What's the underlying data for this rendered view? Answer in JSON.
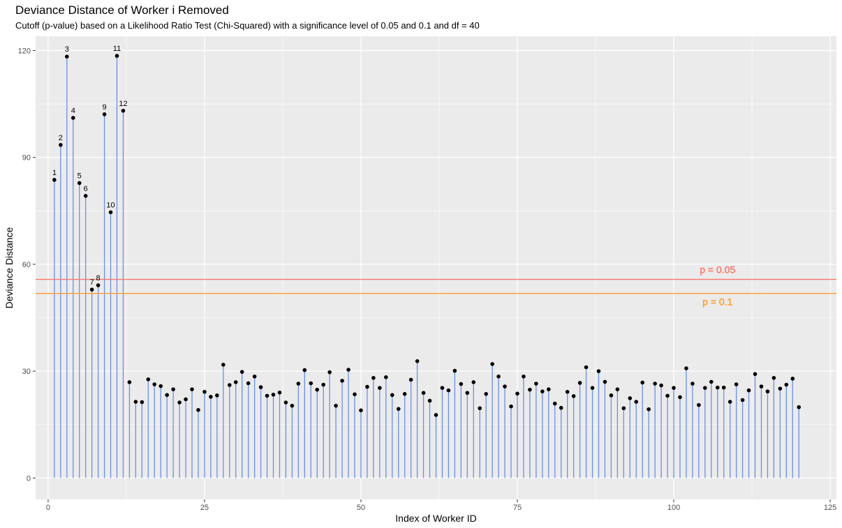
{
  "chart_data": {
    "type": "scatter",
    "style": "lollipop",
    "title": "Deviance Distance of Worker i Removed",
    "subtitle": "Cutoff (p-value) based on a Likelihood Ratio Test (Chi-Squared) with a significance level of 0.05 and 0.1 and df = 40",
    "xlabel": "Index of Worker ID",
    "ylabel": "Deviance Distance",
    "xlim": [
      -2,
      126
    ],
    "ylim": [
      -6,
      124
    ],
    "x_ticks": [
      0,
      25,
      50,
      75,
      100,
      125
    ],
    "y_ticks": [
      0,
      30,
      60,
      90,
      120
    ],
    "grid": true,
    "colors": {
      "stem": "#6a8fe8",
      "point": "#000000",
      "p005": "#f8766d",
      "p01": "#ff9c2a",
      "panel": "#ebebeb",
      "grid": "#ffffff"
    },
    "reference_lines": [
      {
        "label": "p = 0.05",
        "y": 55.76,
        "color": "#f8766d"
      },
      {
        "label": "p = 0.1",
        "y": 51.81,
        "color": "#ff9c2a"
      }
    ],
    "labeled_points": [
      1,
      2,
      3,
      4,
      5,
      6,
      7,
      8,
      9,
      10,
      11,
      12
    ],
    "x": [
      1,
      2,
      3,
      4,
      5,
      6,
      7,
      8,
      9,
      10,
      11,
      12,
      13,
      14,
      15,
      16,
      17,
      18,
      19,
      20,
      21,
      22,
      23,
      24,
      25,
      26,
      27,
      28,
      29,
      30,
      31,
      32,
      33,
      34,
      35,
      36,
      37,
      38,
      39,
      40,
      41,
      42,
      43,
      44,
      45,
      46,
      47,
      48,
      49,
      50,
      51,
      52,
      53,
      54,
      55,
      56,
      57,
      58,
      59,
      60,
      61,
      62,
      63,
      64,
      65,
      66,
      67,
      68,
      69,
      70,
      71,
      72,
      73,
      74,
      75,
      76,
      77,
      78,
      79,
      80,
      81,
      82,
      83,
      84,
      85,
      86,
      87,
      88,
      89,
      90,
      91,
      92,
      93,
      94,
      95,
      96,
      97,
      98,
      99,
      100,
      101,
      102,
      103,
      104,
      105,
      106,
      107,
      108,
      109,
      110,
      111,
      112,
      113,
      114,
      115,
      116,
      117,
      118,
      119,
      120
    ],
    "values": [
      83.7,
      93.5,
      118.3,
      101.1,
      82.8,
      79.2,
      52.9,
      54.1,
      102.1,
      74.6,
      118.5,
      103.1,
      26.9,
      21.4,
      21.3,
      27.7,
      26.3,
      25.8,
      23.3,
      24.9,
      21.2,
      22.1,
      24.9,
      19.1,
      24.2,
      22.8,
      23.2,
      31.8,
      26.1,
      26.9,
      29.8,
      26.6,
      28.5,
      25.5,
      23.1,
      23.4,
      24.0,
      21.2,
      20.3,
      26.5,
      30.3,
      26.6,
      24.8,
      26.2,
      29.7,
      20.3,
      27.3,
      30.4,
      23.5,
      19.0,
      25.6,
      28.1,
      25.3,
      28.3,
      23.3,
      19.4,
      23.6,
      27.6,
      32.8,
      23.9,
      21.7,
      17.7,
      25.3,
      24.6,
      30.1,
      26.4,
      23.9,
      26.9,
      19.6,
      23.6,
      32.0,
      28.5,
      25.7,
      20.1,
      23.7,
      28.5,
      24.8,
      26.5,
      24.3,
      24.9,
      20.9,
      19.7,
      24.2,
      23.0,
      26.7,
      31.1,
      25.3,
      30.0,
      27.0,
      23.2,
      24.9,
      19.6,
      22.4,
      21.4,
      26.8,
      19.3,
      26.5,
      26.0,
      23.1,
      25.3,
      22.7,
      30.8,
      26.5,
      20.5,
      25.3,
      27.0,
      25.4,
      25.4,
      21.4,
      26.3,
      21.9,
      24.6,
      29.2,
      25.7,
      24.3,
      28.1,
      25.1,
      26.2,
      27.9,
      19.9
    ]
  }
}
